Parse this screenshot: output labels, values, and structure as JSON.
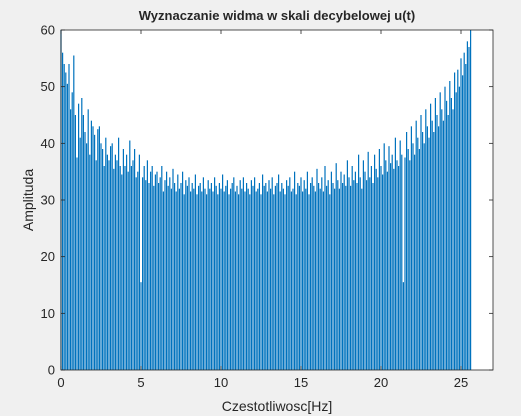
{
  "figure": {
    "background": "#f0f0f0"
  },
  "chart_data": {
    "type": "bar",
    "title": "Wyznaczanie widma w skali decybelowej u(t)",
    "xlabel": "Czestotliwosc[Hz]",
    "ylabel": "Amplituda",
    "xlim": [
      0,
      27
    ],
    "ylim": [
      0,
      60
    ],
    "xticks": [
      "0",
      "5",
      "10",
      "15",
      "20",
      "25"
    ],
    "yticks": [
      "0",
      "10",
      "20",
      "30",
      "40",
      "50",
      "60"
    ],
    "grid": false,
    "legend": "none",
    "bar_color": "#0072bd",
    "series": [
      {
        "name": "",
        "x_start": 0,
        "x_step": 0.1,
        "values": [
          60.0,
          56.0,
          54.0,
          52.5,
          50.5,
          54.0,
          46.0,
          49.0,
          55.5,
          45.0,
          37.5,
          47.0,
          41.0,
          48.0,
          45.0,
          42.0,
          40.0,
          46.0,
          38.0,
          44.0,
          43.0,
          41.5,
          37.0,
          42.5,
          43.0,
          40.0,
          39.0,
          36.0,
          41.0,
          38.0,
          37.0,
          39.5,
          40.0,
          35.5,
          38.0,
          37.0,
          41.0,
          36.0,
          34.5,
          39.0,
          36.0,
          38.0,
          35.0,
          40.5,
          36.0,
          37.0,
          39.0,
          34.0,
          35.0,
          38.0,
          15.5,
          34.0,
          36.0,
          33.5,
          37.0,
          33.0,
          35.0,
          36.0,
          32.5,
          34.5,
          35.0,
          33.0,
          34.0,
          36.0,
          31.5,
          33.5,
          35.0,
          32.5,
          34.0,
          32.0,
          35.5,
          33.0,
          31.5,
          34.5,
          32.0,
          33.0,
          35.0,
          31.0,
          33.5,
          32.5,
          34.0,
          31.5,
          33.0,
          32.0,
          34.5,
          31.0,
          32.5,
          33.0,
          31.5,
          34.0,
          32.0,
          31.0,
          33.5,
          32.0,
          33.0,
          31.5,
          34.0,
          32.5,
          31.0,
          33.0,
          32.0,
          34.5,
          31.5,
          32.5,
          33.5,
          31.0,
          32.0,
          33.0,
          34.0,
          31.5,
          32.5,
          31.0,
          33.5,
          32.0,
          34.0,
          31.5,
          33.0,
          32.0,
          31.0,
          33.5,
          32.5,
          34.0,
          31.5,
          32.0,
          33.0,
          31.0,
          34.5,
          32.5,
          33.0,
          31.5,
          33.5,
          32.0,
          34.0,
          31.0,
          32.5,
          33.0,
          34.5,
          31.5,
          33.0,
          32.0,
          31.0,
          33.5,
          32.5,
          34.0,
          31.5,
          32.0,
          35.0,
          31.0,
          33.0,
          32.5,
          34.0,
          31.5,
          33.5,
          32.0,
          35.0,
          31.0,
          33.0,
          34.0,
          32.5,
          31.5,
          35.5,
          33.0,
          32.0,
          34.0,
          31.5,
          36.0,
          32.5,
          33.5,
          31.0,
          35.0,
          33.0,
          32.0,
          36.5,
          33.5,
          32.0,
          35.0,
          33.0,
          34.5,
          32.5,
          37.0,
          34.0,
          32.5,
          36.0,
          33.5,
          35.0,
          33.0,
          38.0,
          34.0,
          32.0,
          37.0,
          35.0,
          33.5,
          38.5,
          34.0,
          36.0,
          33.0,
          38.0,
          35.5,
          34.0,
          39.0,
          36.0,
          34.5,
          40.0,
          37.0,
          35.0,
          39.5,
          36.5,
          38.0,
          35.5,
          41.0,
          37.0,
          36.0,
          40.5,
          38.0,
          15.5,
          37.5,
          42.0,
          39.0,
          37.0,
          43.0,
          40.0,
          38.0,
          44.0,
          41.0,
          39.0,
          45.0,
          42.0,
          40.0,
          46.0,
          43.0,
          41.0,
          47.0,
          44.0,
          42.0,
          48.0,
          45.0,
          43.0,
          49.0,
          46.0,
          44.0,
          50.0,
          47.5,
          45.0,
          51.0,
          48.0,
          46.0,
          52.5,
          49.0,
          53.0,
          50.0,
          55.0,
          52.0,
          56.0,
          54.0,
          58.0,
          57.0,
          60.0
        ]
      }
    ]
  }
}
